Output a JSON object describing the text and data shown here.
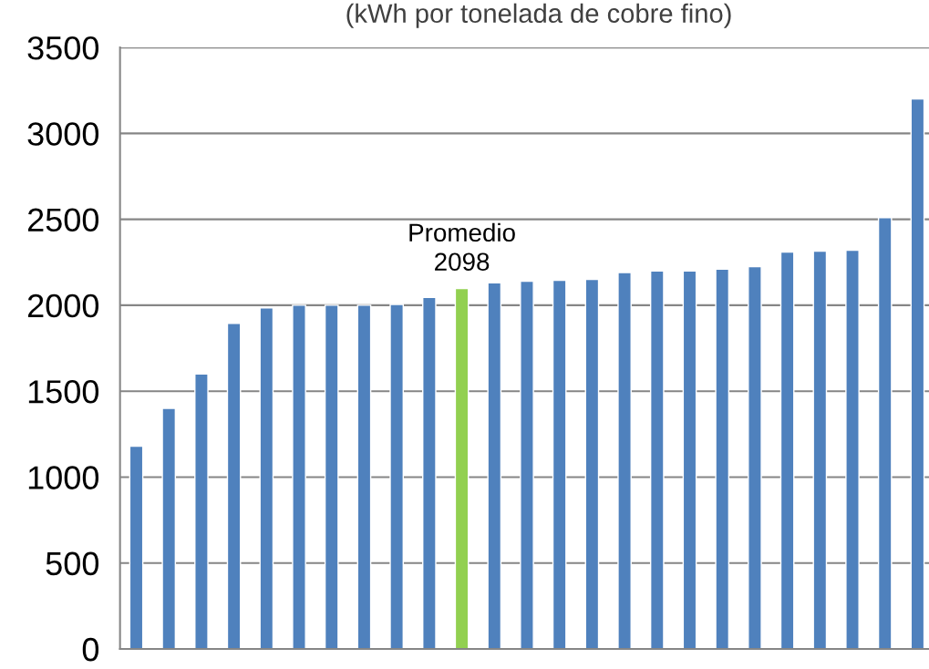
{
  "chart_data": {
    "type": "bar",
    "title": "(kWh por tonelada de cobre fino)",
    "categories": [
      null,
      null,
      null,
      null,
      null,
      null,
      null,
      null,
      null,
      null,
      null,
      null,
      null,
      null,
      null,
      null,
      null,
      null,
      null,
      null,
      null,
      null,
      null,
      null,
      null
    ],
    "values": [
      1180,
      1400,
      1600,
      1895,
      1985,
      2000,
      2000,
      2000,
      2005,
      2045,
      2098,
      2130,
      2140,
      2145,
      2150,
      2190,
      2200,
      2200,
      2210,
      2225,
      2310,
      2315,
      2320,
      2510,
      3200
    ],
    "colors": [
      "#4f81bd",
      "#4f81bd",
      "#4f81bd",
      "#4f81bd",
      "#4f81bd",
      "#4f81bd",
      "#4f81bd",
      "#4f81bd",
      "#4f81bd",
      "#4f81bd",
      "#92d050",
      "#4f81bd",
      "#4f81bd",
      "#4f81bd",
      "#4f81bd",
      "#4f81bd",
      "#4f81bd",
      "#4f81bd",
      "#4f81bd",
      "#4f81bd",
      "#4f81bd",
      "#4f81bd",
      "#4f81bd",
      "#4f81bd",
      "#4f81bd"
    ],
    "value_labels": [
      null,
      null,
      null,
      null,
      null,
      null,
      null,
      null,
      null,
      null,
      "Promedio\n2098",
      null,
      null,
      null,
      null,
      null,
      null,
      null,
      null,
      null,
      null,
      null,
      null,
      null,
      null
    ],
    "ylim": [
      0,
      3500
    ],
    "yticks": [
      0,
      500,
      1000,
      1500,
      2000,
      2500,
      3000,
      3500
    ],
    "grid": "y",
    "legend": false
  }
}
